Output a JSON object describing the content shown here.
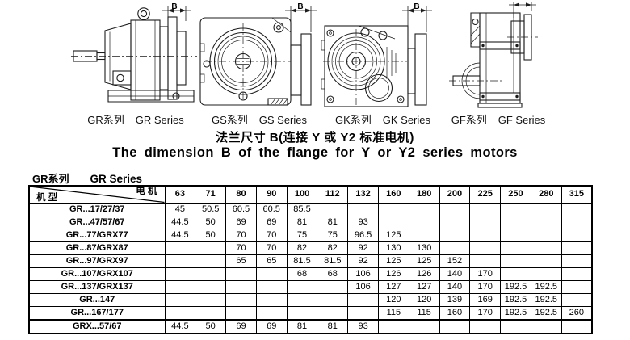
{
  "titles": {
    "chinese": "法兰尺寸 B(连接 Y 或 Y2 标准电机)",
    "english": "The dimension B of the flange for Y or Y2 series motors"
  },
  "drawings": [
    {
      "id": "gr",
      "label_cn": "GR系列",
      "label_en": "GR Series",
      "dim_label": "B"
    },
    {
      "id": "gs",
      "label_cn": "GS系列",
      "label_en": "GS Series",
      "dim_label": "B"
    },
    {
      "id": "gk",
      "label_cn": "GK系列",
      "label_en": "GK Series",
      "dim_label": "B"
    },
    {
      "id": "gf",
      "label_cn": "GF系列",
      "label_en": "GF Series",
      "dim_label": "B"
    }
  ],
  "table": {
    "caption_cn": "GR系列",
    "caption_en": "GR Series",
    "corner_top_right": "电 机",
    "corner_bottom_left": "机 型",
    "columns": [
      "63",
      "71",
      "80",
      "90",
      "100",
      "112",
      "132",
      "160",
      "180",
      "200",
      "225",
      "250",
      "280",
      "315"
    ],
    "rows": [
      {
        "model": "GR...17/27/37",
        "values": [
          "45",
          "50.5",
          "60.5",
          "60.5",
          "85.5",
          "",
          "",
          "",
          "",
          "",
          "",
          "",
          "",
          ""
        ]
      },
      {
        "model": "GR...47/57/67",
        "values": [
          "44.5",
          "50",
          "69",
          "69",
          "81",
          "81",
          "93",
          "",
          "",
          "",
          "",
          "",
          "",
          ""
        ]
      },
      {
        "model": "GR...77/GRX77",
        "values": [
          "44.5",
          "50",
          "70",
          "70",
          "75",
          "75",
          "96.5",
          "125",
          "",
          "",
          "",
          "",
          "",
          ""
        ]
      },
      {
        "model": "GR...87/GRX87",
        "values": [
          "",
          "",
          "70",
          "70",
          "82",
          "82",
          "92",
          "130",
          "130",
          "",
          "",
          "",
          "",
          ""
        ]
      },
      {
        "model": "GR...97/GRX97",
        "values": [
          "",
          "",
          "65",
          "65",
          "81.5",
          "81.5",
          "92",
          "125",
          "125",
          "152",
          "",
          "",
          "",
          ""
        ]
      },
      {
        "model": "GR...107/GRX107",
        "values": [
          "",
          "",
          "",
          "",
          "68",
          "68",
          "106",
          "126",
          "126",
          "140",
          "170",
          "",
          "",
          ""
        ]
      },
      {
        "model": "GR...137/GRX137",
        "values": [
          "",
          "",
          "",
          "",
          "",
          "",
          "106",
          "127",
          "127",
          "140",
          "170",
          "192.5",
          "192.5",
          ""
        ]
      },
      {
        "model": "GR...147",
        "values": [
          "",
          "",
          "",
          "",
          "",
          "",
          "",
          "120",
          "120",
          "139",
          "169",
          "192.5",
          "192.5",
          ""
        ]
      },
      {
        "model": "GR...167/177",
        "values": [
          "",
          "",
          "",
          "",
          "",
          "",
          "",
          "115",
          "115",
          "160",
          "170",
          "192.5",
          "192.5",
          "260"
        ]
      },
      {
        "model": "GRX...57/67",
        "values": [
          "44.5",
          "50",
          "69",
          "69",
          "81",
          "81",
          "93",
          "",
          "",
          "",
          "",
          "",
          "",
          ""
        ]
      }
    ]
  },
  "colors": {
    "ink": "#1c1c1c",
    "paper": "#ffffff"
  }
}
